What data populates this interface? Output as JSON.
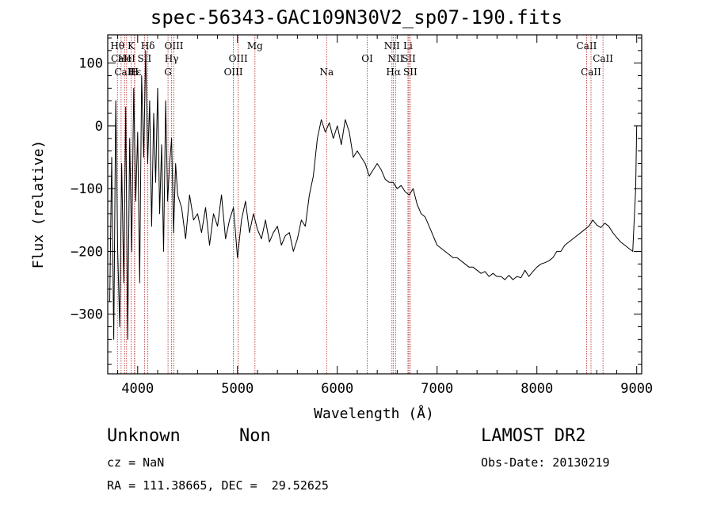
{
  "chart_data": {
    "type": "line",
    "title": "spec-56343-GAC109N30V2_sp07-190.fits",
    "xlabel": "Wavelength (Å)",
    "ylabel": "Flux (relative)",
    "xlim": [
      3700,
      9050
    ],
    "ylim": [
      -395,
      145
    ],
    "xticks": [
      4000,
      5000,
      6000,
      7000,
      8000,
      9000
    ],
    "yticks": [
      100,
      0,
      -100,
      -200,
      -300
    ],
    "series": [
      {
        "x": [
          3720,
          3740,
          3760,
          3780,
          3800,
          3820,
          3840,
          3860,
          3880,
          3900,
          3920,
          3940,
          3960,
          3980,
          4000,
          4020,
          4040,
          4060,
          4080,
          4100,
          4120,
          4140,
          4160,
          4180,
          4200,
          4220,
          4240,
          4260,
          4280,
          4300,
          4320,
          4340,
          4360,
          4380,
          4400,
          4440,
          4480,
          4520,
          4560,
          4600,
          4640,
          4680,
          4720,
          4760,
          4800,
          4840,
          4880,
          4920,
          4960,
          5000,
          5040,
          5080,
          5120,
          5160,
          5200,
          5240,
          5280,
          5320,
          5360,
          5400,
          5440,
          5480,
          5520,
          5560,
          5600,
          5640,
          5680,
          5720,
          5760,
          5800,
          5840,
          5880,
          5920,
          5960,
          6000,
          6040,
          6080,
          6120,
          6160,
          6200,
          6240,
          6280,
          6320,
          6360,
          6400,
          6440,
          6480,
          6520,
          6560,
          6600,
          6640,
          6680,
          6720,
          6760,
          6800,
          6840,
          6880,
          6920,
          6960,
          7000,
          7040,
          7080,
          7120,
          7160,
          7200,
          7240,
          7280,
          7320,
          7360,
          7400,
          7440,
          7480,
          7520,
          7560,
          7600,
          7640,
          7680,
          7720,
          7760,
          7800,
          7840,
          7880,
          7920,
          7960,
          8000,
          8040,
          8080,
          8120,
          8160,
          8200,
          8240,
          8280,
          8320,
          8360,
          8400,
          8440,
          8480,
          8520,
          8560,
          8600,
          8640,
          8680,
          8720,
          8760,
          8800,
          8840,
          8880,
          8920,
          8960,
          8990,
          9000
        ],
        "y": [
          -280,
          -50,
          -340,
          40,
          -200,
          -320,
          -60,
          -250,
          30,
          -340,
          -20,
          -200,
          60,
          -120,
          -10,
          -250,
          80,
          -50,
          120,
          -60,
          40,
          -160,
          20,
          -90,
          60,
          -140,
          -30,
          -200,
          40,
          -120,
          -60,
          -20,
          -170,
          -60,
          -110,
          -130,
          -180,
          -110,
          -150,
          -140,
          -170,
          -130,
          -190,
          -140,
          -160,
          -110,
          -180,
          -150,
          -130,
          -210,
          -150,
          -120,
          -170,
          -140,
          -165,
          -180,
          -150,
          -185,
          -170,
          -160,
          -190,
          -175,
          -170,
          -200,
          -180,
          -150,
          -160,
          -110,
          -80,
          -20,
          10,
          -10,
          5,
          -20,
          0,
          -30,
          10,
          -10,
          -50,
          -40,
          -50,
          -60,
          -80,
          -70,
          -60,
          -70,
          -85,
          -90,
          -90,
          -100,
          -95,
          -105,
          -110,
          -100,
          -125,
          -140,
          -145,
          -160,
          -175,
          -190,
          -195,
          -200,
          -205,
          -210,
          -210,
          -215,
          -220,
          -225,
          -225,
          -230,
          -235,
          -232,
          -240,
          -235,
          -240,
          -240,
          -245,
          -238,
          -245,
          -240,
          -242,
          -230,
          -240,
          -232,
          -225,
          -220,
          -218,
          -215,
          -210,
          -200,
          -200,
          -190,
          -185,
          -180,
          -175,
          -170,
          -165,
          -160,
          -150,
          -158,
          -162,
          -155,
          -160,
          -170,
          -178,
          -185,
          -190,
          -195,
          -200,
          -100,
          0
        ]
      }
    ],
    "lines": [
      {
        "label": "Hθ",
        "x": 3797,
        "row": 1
      },
      {
        "label": "CaII",
        "x": 3834,
        "row": 2
      },
      {
        "label": "CaII",
        "x": 3869,
        "row": 3
      },
      {
        "label": "K",
        "x": 3934,
        "row": 1
      },
      {
        "label": "HeI",
        "x": 3889,
        "row": 2
      },
      {
        "label": "Hε",
        "x": 3970,
        "row": 3
      },
      {
        "label": "Hδ",
        "x": 4102,
        "row": 1
      },
      {
        "label": "SII",
        "x": 4068,
        "row": 2
      },
      {
        "label": "H",
        "x": 3968,
        "row": 3
      },
      {
        "label": "OIII",
        "x": 4363,
        "row": 1
      },
      {
        "label": "Hγ",
        "x": 4340,
        "row": 2
      },
      {
        "label": "G",
        "x": 4304,
        "row": 3
      },
      {
        "label": "Mg",
        "x": 5175,
        "row": 1
      },
      {
        "label": "OIII",
        "x": 5007,
        "row": 2
      },
      {
        "label": "OIII",
        "x": 4959,
        "row": 3
      },
      {
        "label": "Na",
        "x": 5893,
        "row": 3
      },
      {
        "label": "OI",
        "x": 6300,
        "row": 2
      },
      {
        "label": "NII",
        "x": 6548,
        "row": 1
      },
      {
        "label": "Li",
        "x": 6708,
        "row": 1
      },
      {
        "label": "NII",
        "x": 6584,
        "row": 2
      },
      {
        "label": "SII",
        "x": 6717,
        "row": 2
      },
      {
        "label": "Hα",
        "x": 6563,
        "row": 3
      },
      {
        "label": "SII",
        "x": 6731,
        "row": 3
      },
      {
        "label": "CaII",
        "x": 8498,
        "row": 1
      },
      {
        "label": "CaII",
        "x": 8662,
        "row": 2
      },
      {
        "label": "CaII",
        "x": 8542,
        "row": 3
      }
    ],
    "grid": false,
    "legend": "none"
  },
  "info": {
    "class": "Unknown",
    "subclass": "Non",
    "cz": "cz = NaN",
    "coords": "RA = 111.38665, DEC =  29.52625",
    "survey": "LAMOST DR2",
    "obsdate": "Obs-Date: 20130219"
  }
}
